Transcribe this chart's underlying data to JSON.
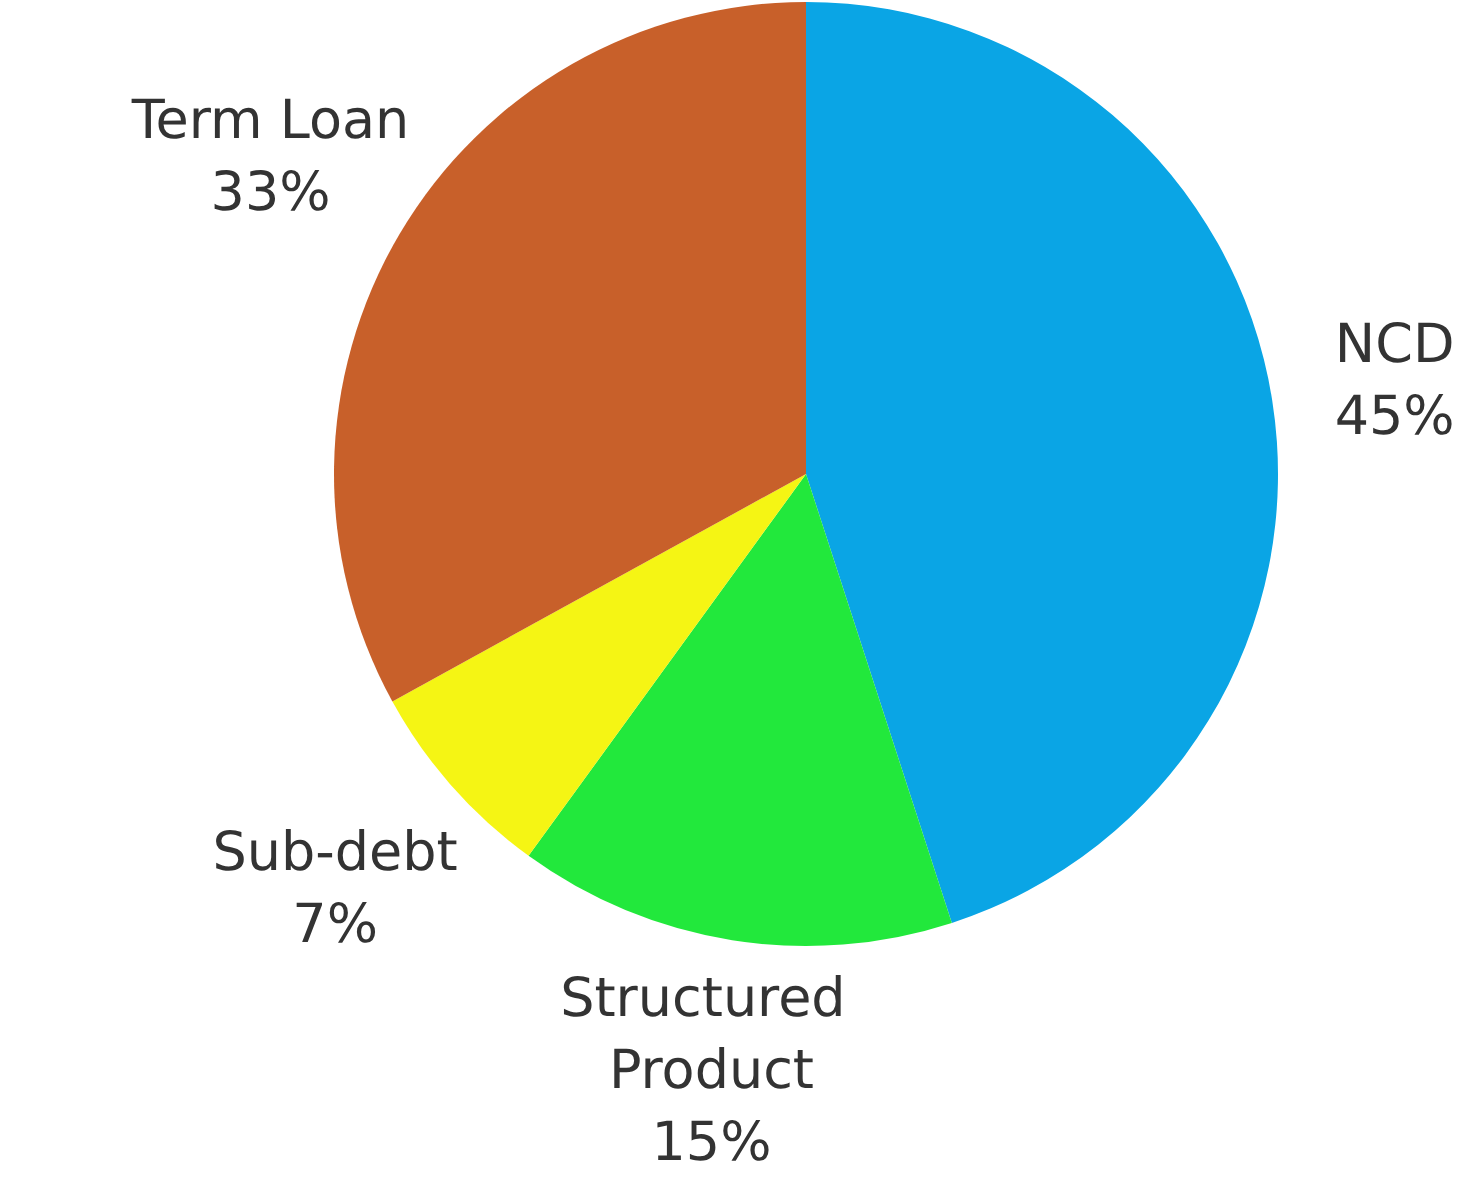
{
  "chart_data": {
    "type": "pie",
    "categories": [
      "NCD",
      "Structured Product",
      "Sub-debt",
      "Term Loan"
    ],
    "values": [
      45,
      15,
      7,
      33
    ],
    "colors": [
      "#0aa5e5",
      "#22e83c",
      "#f5f514",
      "#c8602a"
    ],
    "value_labels": [
      "45%",
      "15%",
      "7%",
      "33%"
    ],
    "legend": false
  }
}
